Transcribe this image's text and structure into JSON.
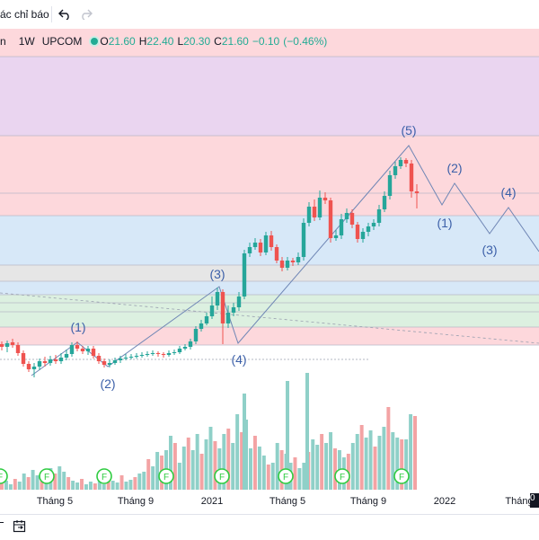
{
  "toolbar": {
    "indicators_label": "ác chỉ báo",
    "undo_icon": "undo-icon",
    "redo_icon": "redo-icon"
  },
  "legend": {
    "symbol_fragment": "n",
    "interval": "1W",
    "exchange": "UPCOM",
    "open_key": "O",
    "open": "21.60",
    "high_key": "H",
    "high": "22.40",
    "low_key": "L",
    "low": "20.30",
    "close_key": "C",
    "close": "21.60",
    "change": "−0.10",
    "change_pct": "(−0.46%)"
  },
  "colors": {
    "up": "#26a69a",
    "down": "#ef5350",
    "up_volume": "#8fd0c8",
    "down_volume": "#f3a3a4",
    "wave_label": "#3b5fa8",
    "wave_line": "#6f86b5",
    "band_red": "#fdd8dc",
    "band_purple": "#ead5f0",
    "band_blue": "#d7e8f8",
    "band_gray": "#e6e6e6",
    "band_green": "#dcf0e0",
    "event_marker": "#2ecc40"
  },
  "x_axis": {
    "labels": [
      "Tháng 5",
      "Tháng 9",
      "2021",
      "Tháng 5",
      "Tháng 9",
      "2022",
      "Tháng"
    ],
    "time_badge": "0"
  },
  "wave_labels": [
    "(1)",
    "(2)",
    "(3)",
    "(4)",
    "(5)",
    "(1)",
    "(2)",
    "(3)",
    "(4)"
  ],
  "event_markers": {
    "label": "F",
    "count": 8
  },
  "bottom_toolbar": {
    "compare_icon": "calendar-goto-icon"
  },
  "chart_data": {
    "type": "candlestick",
    "timeframe": "1W",
    "note_values": "approximate OHLC read from chart for the last visible candle only",
    "last_candle": {
      "open": 21.6,
      "high": 22.4,
      "low": 20.3,
      "close": 21.6
    }
  }
}
